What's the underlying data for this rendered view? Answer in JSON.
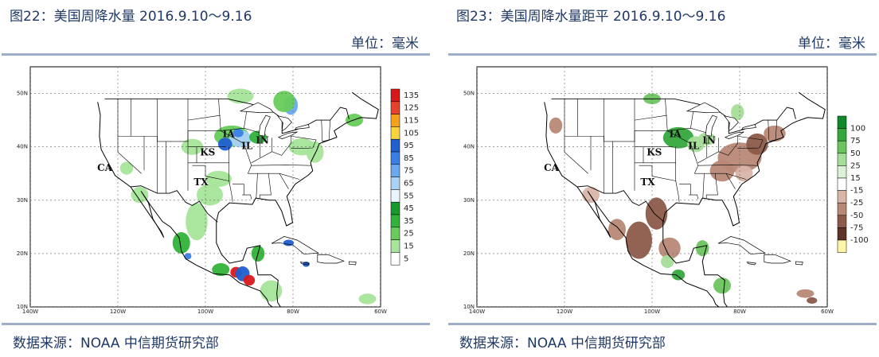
{
  "panels": [
    {
      "title": "图22：美国周降水量 2016.9.10～9.16",
      "unit": "单位：毫米",
      "source": "数据来源：NOAA 中信期货研究部",
      "chart_data": {
        "type": "heatmap",
        "title": "图22：美国周降水量 2016.9.10～9.16",
        "x_ticks": [
          "140W",
          "120W",
          "100W",
          "80W",
          "60W"
        ],
        "y_ticks": [
          "10N",
          "20N",
          "30N",
          "40N",
          "50N"
        ],
        "xlim": [
          -140,
          -60
        ],
        "ylim": [
          10,
          55
        ],
        "state_labels": [
          "CA",
          "KS",
          "IA",
          "IL",
          "IN",
          "TX"
        ],
        "legend": {
          "levels": [
            "135",
            "125",
            "115",
            "105",
            "95",
            "85",
            "75",
            "65",
            "55",
            "45",
            "35",
            "25",
            "15",
            "5"
          ],
          "colors": [
            "#d7191c",
            "#e8412c",
            "#f7a11a",
            "#fbd33c",
            "#1f5fd0",
            "#3a7fe6",
            "#6aa9f0",
            "#a9d2f7",
            "#e9f6ff",
            "#169b2a",
            "#31b33a",
            "#67cc5a",
            "#a7e59a",
            "#ffffff"
          ]
        }
      }
    },
    {
      "title": "图23：美国周降水量距平 2016.9.10～9.16",
      "unit": "单位：毫米",
      "source": "数据来源：NOAA 中信期货研究部",
      "chart_data": {
        "type": "heatmap",
        "title": "图23：美国周降水量距平 2016.9.10～9.16",
        "x_ticks": [
          "140W",
          "120W",
          "100W",
          "80W",
          "60W"
        ],
        "y_ticks": [
          "10N",
          "20N",
          "30N",
          "40N",
          "50N"
        ],
        "xlim": [
          -140,
          -60
        ],
        "ylim": [
          10,
          55
        ],
        "state_labels": [
          "CA",
          "KS",
          "IA",
          "IL",
          "IN",
          "TX"
        ],
        "legend": {
          "levels": [
            "100",
            "75",
            "50",
            "25",
            "15",
            "-15",
            "-25",
            "-50",
            "-75",
            "-100"
          ],
          "colors": [
            "#11882a",
            "#35a83d",
            "#6cc45e",
            "#a6dd99",
            "#dcf2d6",
            "#ffffff",
            "#d9b5a8",
            "#b88876",
            "#8c5a4a",
            "#5e3428",
            "#fff5a8"
          ]
        }
      }
    }
  ]
}
